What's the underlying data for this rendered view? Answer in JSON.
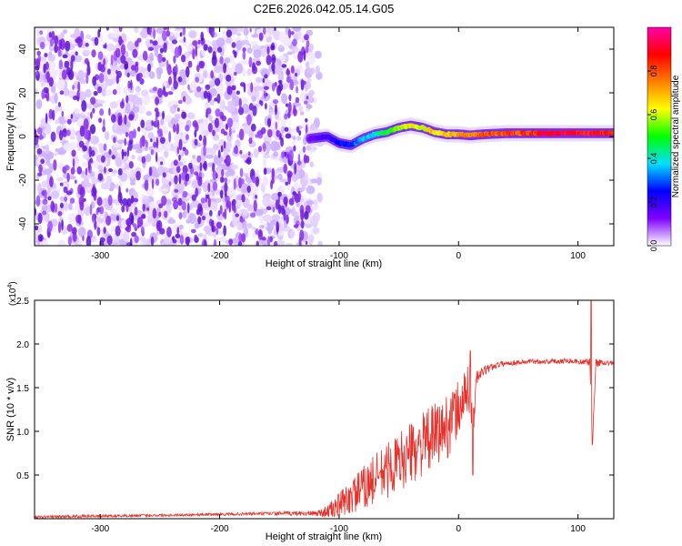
{
  "figure": {
    "title": "C2E6.2026.042.05.14.G05"
  },
  "chart_data": [
    {
      "type": "heatmap",
      "title": "C2E6.2026.042.05.14.G05",
      "xlabel": "Height of straight line (km)",
      "ylabel": "Frequency (Hz)",
      "xlim": [
        -355,
        130
      ],
      "ylim": [
        -50,
        50
      ],
      "xticks": [
        -300,
        -200,
        -100,
        0,
        100
      ],
      "xtick_labels": [
        "-300",
        "-200",
        "-100",
        "0",
        "100"
      ],
      "yticks": [
        -40,
        -20,
        0,
        20,
        40
      ],
      "ytick_labels": [
        "-40",
        "-20",
        "0",
        "20",
        "40"
      ],
      "noise_region": {
        "x_from": -355,
        "x_to": -125,
        "freq_from": -50,
        "freq_to": 50
      },
      "signal_track": {
        "x": [
          -125,
          -110,
          -100,
          -90,
          -80,
          -70,
          -60,
          -50,
          -40,
          -30,
          -20,
          -10,
          0,
          10,
          20,
          40,
          60,
          80,
          100,
          120,
          130
        ],
        "freq": [
          -1,
          0,
          -3,
          -4,
          -1,
          1,
          2,
          4,
          5,
          4,
          2,
          1,
          1,
          0.5,
          1,
          1.5,
          1.5,
          1.5,
          1.5,
          1.5,
          1.5
        ],
        "amplitude": [
          0.15,
          0.2,
          0.25,
          0.3,
          0.35,
          0.4,
          0.5,
          0.6,
          0.65,
          0.65,
          0.7,
          0.7,
          0.75,
          0.8,
          0.85,
          0.85,
          0.9,
          0.95,
          0.95,
          0.9,
          0.85
        ]
      },
      "colorbar": {
        "label": "Normalized spectral amplitude",
        "range": [
          0,
          1
        ],
        "ticks": [
          0.0,
          0.2,
          0.4,
          0.6,
          0.8
        ],
        "tick_labels": [
          "0.0",
          "0.2",
          "0.4",
          "0.6",
          "0.8"
        ],
        "colors": [
          "#ffffff",
          "#8000ff",
          "#0000ff",
          "#00e0ff",
          "#00ff00",
          "#ffff00",
          "#ff8000",
          "#ff0000",
          "#ff00aa"
        ]
      }
    },
    {
      "type": "line",
      "xlabel": "Height of straight line (km)",
      "ylabel": "SNR (10 * v/v)",
      "scale_label": "(x10",
      "scale_exp": "4",
      "scale_close": ")",
      "xlim": [
        -355,
        130
      ],
      "ylim": [
        0,
        2.5
      ],
      "xticks": [
        -300,
        -200,
        -100,
        0,
        100
      ],
      "xtick_labels": [
        "-300",
        "-200",
        "-100",
        "0",
        "100"
      ],
      "yticks": [
        0.5,
        1.0,
        1.5,
        2.0,
        2.5
      ],
      "ytick_labels": [
        "0.5",
        "1.0",
        "1.5",
        "2.0",
        "2.5"
      ],
      "line_color": "#e8302a",
      "series": [
        {
          "name": "SNR",
          "x": [
            -355,
            -300,
            -250,
            -200,
            -150,
            -120,
            -110,
            -100,
            -90,
            -80,
            -70,
            -60,
            -50,
            -40,
            -30,
            -20,
            -10,
            -5,
            0,
            5,
            10,
            12,
            15,
            20,
            25,
            30,
            35,
            40,
            50,
            60,
            70,
            80,
            90,
            100,
            105,
            110,
            112,
            115,
            120,
            130
          ],
          "y": [
            0.02,
            0.03,
            0.04,
            0.05,
            0.06,
            0.06,
            0.08,
            0.15,
            0.25,
            0.35,
            0.45,
            0.55,
            0.65,
            0.75,
            0.85,
            0.95,
            1.05,
            1.15,
            1.25,
            1.4,
            1.5,
            1.0,
            1.6,
            1.68,
            1.72,
            1.75,
            1.77,
            1.78,
            1.79,
            1.8,
            1.8,
            1.8,
            1.81,
            1.8,
            1.79,
            1.8,
            0.85,
            1.78,
            1.79,
            1.78
          ],
          "noise": [
            0.015,
            0.015,
            0.015,
            0.015,
            0.02,
            0.03,
            0.07,
            0.15,
            0.2,
            0.25,
            0.3,
            0.32,
            0.34,
            0.35,
            0.36,
            0.37,
            0.38,
            0.35,
            0.35,
            0.3,
            0.3,
            0.2,
            0.12,
            0.06,
            0.05,
            0.04,
            0.03,
            0.03,
            0.03,
            0.03,
            0.03,
            0.03,
            0.03,
            0.03,
            0.03,
            0.05,
            0.05,
            0.06,
            0.03,
            0.03
          ]
        }
      ],
      "spikes": [
        {
          "x": 10,
          "y": 1.92
        },
        {
          "x": 12,
          "y": 0.5
        },
        {
          "x": 111,
          "y": 2.55
        },
        {
          "x": 112,
          "y": 0.85
        }
      ]
    }
  ]
}
